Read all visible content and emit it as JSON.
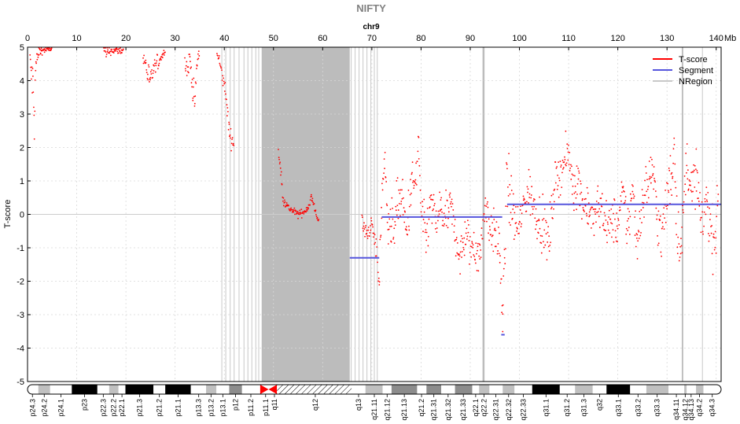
{
  "chart_data": {
    "type": "scatter",
    "title": "NIFTY",
    "subtitle": "chr9",
    "xlabel": "",
    "ylabel": "T-score",
    "x_unit": "Mb",
    "xlim": [
      0,
      141
    ],
    "ylim": [
      -5,
      5
    ],
    "x_ticks": [
      0,
      10,
      20,
      30,
      40,
      50,
      60,
      70,
      80,
      90,
      100,
      110,
      120,
      130,
      140
    ],
    "y_ticks": [
      -5,
      -4,
      -3,
      -2,
      -1,
      0,
      1,
      2,
      3,
      4,
      5
    ],
    "grid": true,
    "legend_position": "top-right",
    "colors": {
      "tscore": "#ff0000",
      "segment": "#5555dd",
      "nregion": "#c8c8c8",
      "centromere": "#ff0000"
    },
    "legend": [
      {
        "name": "T-score",
        "color": "#ff0000"
      },
      {
        "name": "Segment",
        "color": "#5555dd"
      },
      {
        "name": "NRegion",
        "color": "#c8c8c8"
      }
    ],
    "series": [
      {
        "name": "T-score",
        "style": "points",
        "profile": [
          [
            0.5,
            4.6,
            0.3
          ],
          [
            0.8,
            4.2,
            0.5
          ],
          [
            1.1,
            3.8,
            0.8
          ],
          [
            1.4,
            2.7,
            0.5
          ],
          [
            1.7,
            4.5,
            0.4
          ],
          [
            2.2,
            4.8,
            0.3
          ],
          [
            2.8,
            4.9,
            0.1
          ],
          [
            5.0,
            4.95,
            0.05
          ],
          [
            15.5,
            4.9,
            0.2
          ],
          [
            16.0,
            4.8,
            0.2
          ],
          [
            17.0,
            4.9,
            0.1
          ],
          [
            19.5,
            4.9,
            0.1
          ],
          [
            23.5,
            4.7,
            0.3
          ],
          [
            24.0,
            4.5,
            0.4
          ],
          [
            24.5,
            4.2,
            0.4
          ],
          [
            25.0,
            3.9,
            0.3
          ],
          [
            25.5,
            4.3,
            0.3
          ],
          [
            28.0,
            4.9,
            0.05
          ],
          [
            32.0,
            4.6,
            0.3
          ],
          [
            32.5,
            4.3,
            0.3
          ],
          [
            33.0,
            4.7,
            0.2
          ],
          [
            33.6,
            3.8,
            0.4
          ],
          [
            34.0,
            3.3,
            0.3
          ],
          [
            34.5,
            4.6,
            0.3
          ],
          [
            35.0,
            4.8,
            0.2
          ],
          [
            38.5,
            4.8,
            0.1
          ],
          [
            39.0,
            4.6,
            0.2
          ],
          [
            39.5,
            4.2,
            0.2
          ],
          [
            40.0,
            3.9,
            0.2
          ],
          [
            40.5,
            3.3,
            0.3
          ],
          [
            41.0,
            2.5,
            0.3
          ],
          [
            41.5,
            2.2,
            0.2
          ],
          [
            42.0,
            2.1,
            0.1
          ],
          [
            51.0,
            1.9,
            0.1
          ],
          [
            51.5,
            1.2,
            0.3
          ],
          [
            52.0,
            0.5,
            0.2
          ],
          [
            53.0,
            0.2,
            0.1
          ],
          [
            54.0,
            0.1,
            0.1
          ],
          [
            55.0,
            0.0,
            0.1
          ],
          [
            56.0,
            0.05,
            0.1
          ],
          [
            57.0,
            0.2,
            0.1
          ],
          [
            57.7,
            0.5,
            0.2
          ],
          [
            58.5,
            0.1,
            0.1
          ],
          [
            59.2,
            -0.2,
            0.1
          ],
          [
            68.0,
            -0.3,
            0.3
          ],
          [
            69.0,
            -0.6,
            0.2
          ],
          [
            70.0,
            -0.3,
            0.2
          ],
          [
            71.0,
            -1.2,
            0.4
          ],
          [
            71.5,
            -2.1,
            0.4
          ],
          [
            72.0,
            0.5,
            0.6
          ],
          [
            72.5,
            1.6,
            0.5
          ],
          [
            73.0,
            0.5,
            0.8
          ],
          [
            74.0,
            -0.6,
            0.8
          ],
          [
            75.0,
            0.2,
            0.7
          ],
          [
            76.0,
            0.6,
            0.6
          ],
          [
            77.0,
            -0.6,
            0.7
          ],
          [
            78.0,
            0.8,
            0.7
          ],
          [
            79.0,
            1.0,
            0.8
          ],
          [
            79.5,
            2.2,
            0.5
          ],
          [
            80.0,
            0.0,
            0.8
          ],
          [
            81.0,
            -0.8,
            0.6
          ],
          [
            82.0,
            0.4,
            0.6
          ],
          [
            83.0,
            -0.3,
            0.6
          ],
          [
            84.0,
            0.2,
            0.6
          ],
          [
            85.0,
            -0.2,
            0.6
          ],
          [
            86.0,
            0.3,
            0.5
          ],
          [
            87.0,
            -0.6,
            0.5
          ],
          [
            88.0,
            -1.3,
            0.6
          ],
          [
            89.0,
            -0.6,
            0.6
          ],
          [
            90.0,
            -1.0,
            0.6
          ],
          [
            91.0,
            -0.9,
            0.7
          ],
          [
            92.0,
            -1.3,
            0.6
          ],
          [
            93.0,
            0.4,
            0.6
          ],
          [
            94.0,
            -0.4,
            0.5
          ],
          [
            95.0,
            -0.6,
            0.6
          ],
          [
            96.0,
            -0.9,
            0.7
          ],
          [
            96.6,
            -3.6,
            1.0
          ],
          [
            97.0,
            -1.0,
            1.0
          ],
          [
            97.5,
            1.0,
            1.0
          ],
          [
            98.0,
            0.6,
            0.8
          ],
          [
            99.0,
            -0.2,
            0.7
          ],
          [
            100.0,
            -0.4,
            0.6
          ],
          [
            101.0,
            0.4,
            0.6
          ],
          [
            102.0,
            0.7,
            0.6
          ],
          [
            103.0,
            0.2,
            0.6
          ],
          [
            104.0,
            -0.1,
            0.7
          ],
          [
            105.0,
            -0.5,
            0.6
          ],
          [
            106.0,
            -0.9,
            0.7
          ],
          [
            107.0,
            0.8,
            0.6
          ],
          [
            108.0,
            1.2,
            0.5
          ],
          [
            109.0,
            1.5,
            0.6
          ],
          [
            110.0,
            1.8,
            0.5
          ],
          [
            111.0,
            0.8,
            0.6
          ],
          [
            112.0,
            1.0,
            0.6
          ],
          [
            113.0,
            0.3,
            0.6
          ],
          [
            114.0,
            0.3,
            0.6
          ],
          [
            115.0,
            -0.3,
            0.6
          ],
          [
            116.0,
            0.3,
            0.6
          ],
          [
            117.0,
            0.1,
            0.6
          ],
          [
            118.0,
            -0.5,
            0.6
          ],
          [
            119.0,
            -0.1,
            0.6
          ],
          [
            120.0,
            -0.4,
            0.7
          ],
          [
            121.0,
            0.6,
            0.6
          ],
          [
            122.0,
            -0.4,
            0.7
          ],
          [
            123.0,
            0.7,
            0.7
          ],
          [
            124.0,
            -0.8,
            0.7
          ],
          [
            125.0,
            0.4,
            0.6
          ],
          [
            126.0,
            0.9,
            0.7
          ],
          [
            127.0,
            1.4,
            0.6
          ],
          [
            128.0,
            0.0,
            0.8
          ],
          [
            129.0,
            -0.7,
            0.8
          ],
          [
            130.0,
            0.5,
            0.7
          ],
          [
            131.0,
            1.3,
            0.8
          ],
          [
            131.5,
            2.2,
            0.6
          ],
          [
            132.0,
            -0.4,
            0.8
          ],
          [
            133.0,
            -0.9,
            0.7
          ],
          [
            134.0,
            1.7,
            0.6
          ],
          [
            135.0,
            0.7,
            0.7
          ],
          [
            136.0,
            1.2,
            0.7
          ],
          [
            137.0,
            -0.5,
            0.7
          ],
          [
            138.0,
            0.6,
            0.7
          ],
          [
            139.0,
            -0.6,
            0.8
          ],
          [
            140.0,
            -0.7,
            0.7
          ],
          [
            140.5,
            1.0,
            0.8
          ]
        ]
      },
      {
        "name": "Segment",
        "style": "lines",
        "segments": [
          {
            "x0": 65.5,
            "x1": 71.5,
            "y": -1.3
          },
          {
            "x0": 72.0,
            "x1": 96.5,
            "y": -0.08
          },
          {
            "x0": 96.3,
            "x1": 97.0,
            "y": -3.6
          },
          {
            "x0": 97.5,
            "x1": 141.0,
            "y": 0.3
          }
        ]
      }
    ],
    "nregions": [
      {
        "x0": 47.6,
        "x1": 65.5,
        "shade": "dark"
      },
      {
        "x0": 92.5,
        "x1": 92.9,
        "shade": "dark"
      },
      {
        "x0": 133.0,
        "x1": 133.3,
        "shade": "dark"
      }
    ],
    "nregion_lines": [
      39.5,
      40.3,
      41.2,
      42.0,
      43.0,
      44.0,
      44.8,
      45.6,
      46.4,
      47.0,
      65.8,
      66.6,
      67.4,
      68.2,
      69.0,
      69.8,
      70.5,
      71.1,
      137.2
    ],
    "ideogram": {
      "bands": [
        {
          "start": 0.0,
          "end": 2.2,
          "stain": "gneg"
        },
        {
          "start": 2.2,
          "end": 4.6,
          "stain": "gpos25"
        },
        {
          "start": 4.6,
          "end": 9.0,
          "stain": "gneg"
        },
        {
          "start": 9.0,
          "end": 14.2,
          "stain": "gpos100"
        },
        {
          "start": 14.2,
          "end": 16.6,
          "stain": "gneg"
        },
        {
          "start": 16.6,
          "end": 18.5,
          "stain": "gpos25"
        },
        {
          "start": 18.5,
          "end": 19.9,
          "stain": "gneg"
        },
        {
          "start": 19.9,
          "end": 25.6,
          "stain": "gpos100"
        },
        {
          "start": 25.6,
          "end": 28.0,
          "stain": "gneg"
        },
        {
          "start": 28.0,
          "end": 33.2,
          "stain": "gpos100"
        },
        {
          "start": 33.2,
          "end": 36.3,
          "stain": "gneg"
        },
        {
          "start": 36.3,
          "end": 38.4,
          "stain": "gpos25"
        },
        {
          "start": 38.4,
          "end": 41.0,
          "stain": "gneg"
        },
        {
          "start": 41.0,
          "end": 43.6,
          "stain": "gpos50"
        },
        {
          "start": 43.6,
          "end": 47.3,
          "stain": "gneg"
        },
        {
          "start": 47.3,
          "end": 50.7,
          "stain": "acen"
        },
        {
          "start": 50.7,
          "end": 65.9,
          "stain": "gvar"
        },
        {
          "start": 65.9,
          "end": 68.7,
          "stain": "gneg"
        },
        {
          "start": 68.7,
          "end": 72.2,
          "stain": "gpos25"
        },
        {
          "start": 72.2,
          "end": 74.0,
          "stain": "gneg"
        },
        {
          "start": 74.0,
          "end": 79.2,
          "stain": "gpos50"
        },
        {
          "start": 79.2,
          "end": 81.1,
          "stain": "gneg"
        },
        {
          "start": 81.1,
          "end": 84.1,
          "stain": "gpos50"
        },
        {
          "start": 84.1,
          "end": 86.9,
          "stain": "gneg"
        },
        {
          "start": 86.9,
          "end": 90.4,
          "stain": "gpos50"
        },
        {
          "start": 90.4,
          "end": 91.8,
          "stain": "gneg"
        },
        {
          "start": 91.8,
          "end": 93.9,
          "stain": "gpos25"
        },
        {
          "start": 93.9,
          "end": 96.6,
          "stain": "gneg"
        },
        {
          "start": 96.6,
          "end": 99.0,
          "stain": "gpos25"
        },
        {
          "start": 99.0,
          "end": 102.6,
          "stain": "gneg"
        },
        {
          "start": 102.6,
          "end": 108.2,
          "stain": "gpos100"
        },
        {
          "start": 108.2,
          "end": 111.3,
          "stain": "gneg"
        },
        {
          "start": 111.3,
          "end": 114.9,
          "stain": "gpos25"
        },
        {
          "start": 114.9,
          "end": 117.7,
          "stain": "gneg"
        },
        {
          "start": 117.7,
          "end": 122.5,
          "stain": "gpos100"
        },
        {
          "start": 122.5,
          "end": 125.8,
          "stain": "gneg"
        },
        {
          "start": 125.8,
          "end": 130.3,
          "stain": "gpos25"
        },
        {
          "start": 130.3,
          "end": 133.5,
          "stain": "gneg"
        },
        {
          "start": 133.5,
          "end": 134.0,
          "stain": "gpos25"
        },
        {
          "start": 134.0,
          "end": 135.9,
          "stain": "gneg"
        },
        {
          "start": 135.9,
          "end": 137.4,
          "stain": "gpos25"
        },
        {
          "start": 137.4,
          "end": 141.0,
          "stain": "gneg"
        }
      ],
      "labels": [
        {
          "name": "p24.3",
          "pos": 1.0
        },
        {
          "name": "p24.2",
          "pos": 3.4
        },
        {
          "name": "p24.1",
          "pos": 6.8
        },
        {
          "name": "p23",
          "pos": 11.6
        },
        {
          "name": "p22.3",
          "pos": 15.4
        },
        {
          "name": "p22.2",
          "pos": 17.5
        },
        {
          "name": "p22.1",
          "pos": 19.2
        },
        {
          "name": "p21.3",
          "pos": 22.8
        },
        {
          "name": "p21.2",
          "pos": 26.8
        },
        {
          "name": "p21.1",
          "pos": 30.6
        },
        {
          "name": "p13.3",
          "pos": 34.8
        },
        {
          "name": "p13.2",
          "pos": 37.3
        },
        {
          "name": "p13.1",
          "pos": 39.7
        },
        {
          "name": "p12",
          "pos": 42.3
        },
        {
          "name": "p11.2",
          "pos": 45.4
        },
        {
          "name": "p11.1",
          "pos": 48.4
        },
        {
          "name": "q11",
          "pos": 50.2
        },
        {
          "name": "q12",
          "pos": 58.5
        },
        {
          "name": "q13",
          "pos": 67.3
        },
        {
          "name": "q21.11",
          "pos": 70.5
        },
        {
          "name": "q21.12",
          "pos": 73.1
        },
        {
          "name": "q21.13",
          "pos": 76.6
        },
        {
          "name": "q21.2",
          "pos": 80.1
        },
        {
          "name": "q21.31",
          "pos": 82.6
        },
        {
          "name": "q21.32",
          "pos": 85.5
        },
        {
          "name": "q21.33",
          "pos": 88.6
        },
        {
          "name": "q22.1",
          "pos": 91.1
        },
        {
          "name": "q22.2",
          "pos": 92.8
        },
        {
          "name": "q22.31",
          "pos": 95.2
        },
        {
          "name": "q22.32",
          "pos": 97.8
        },
        {
          "name": "q22.33",
          "pos": 100.8
        },
        {
          "name": "q31.1",
          "pos": 105.4
        },
        {
          "name": "q31.2",
          "pos": 109.7
        },
        {
          "name": "q31.3",
          "pos": 113.1
        },
        {
          "name": "q32",
          "pos": 116.3
        },
        {
          "name": "q33.1",
          "pos": 120.1
        },
        {
          "name": "q33.2",
          "pos": 124.1
        },
        {
          "name": "q33.3",
          "pos": 128.0
        },
        {
          "name": "q34.11",
          "pos": 131.9
        },
        {
          "name": "q34.12",
          "pos": 133.7
        },
        {
          "name": "q34.13",
          "pos": 134.9
        },
        {
          "name": "q34.2",
          "pos": 136.6
        },
        {
          "name": "q34.3",
          "pos": 139.2
        }
      ]
    }
  }
}
